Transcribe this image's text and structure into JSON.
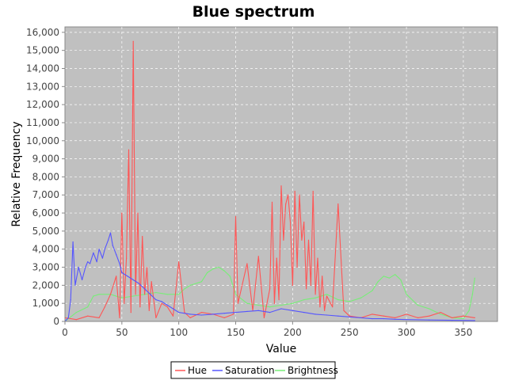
{
  "chart_data": {
    "type": "line",
    "title": "Blue spectrum",
    "xlabel": "Value",
    "ylabel": "Relative Frequency",
    "xlim": [
      0,
      380
    ],
    "ylim": [
      0,
      16300
    ],
    "x_ticks": [
      0,
      50,
      100,
      150,
      200,
      250,
      300,
      350
    ],
    "x_tick_labels": [
      "0",
      "50",
      "100",
      "150",
      "200",
      "250",
      "300",
      "350"
    ],
    "y_ticks": [
      0,
      1000,
      2000,
      3000,
      4000,
      5000,
      6000,
      7000,
      8000,
      9000,
      10000,
      11000,
      12000,
      13000,
      14000,
      15000,
      16000
    ],
    "y_tick_labels": [
      "0",
      "1,000",
      "2,000",
      "3,000",
      "4,000",
      "5,000",
      "6,000",
      "7,000",
      "8,000",
      "9,000",
      "10,000",
      "11,000",
      "12,000",
      "13,000",
      "14,000",
      "15,000",
      "16,000"
    ],
    "grid": true,
    "background": "#c0c0c0",
    "legend_position": "bottom",
    "series": [
      {
        "name": "Hue",
        "color": "#ff5555",
        "x": [
          0,
          10,
          20,
          30,
          35,
          40,
          45,
          48,
          50,
          52,
          54,
          56,
          58,
          60,
          62,
          64,
          66,
          68,
          70,
          72,
          74,
          76,
          80,
          85,
          90,
          95,
          100,
          105,
          110,
          120,
          130,
          140,
          148,
          150,
          152,
          160,
          165,
          170,
          175,
          180,
          182,
          184,
          186,
          188,
          190,
          192,
          194,
          196,
          198,
          200,
          202,
          204,
          206,
          208,
          210,
          212,
          214,
          216,
          218,
          220,
          222,
          224,
          226,
          228,
          230,
          235,
          240,
          245,
          250,
          260,
          270,
          280,
          290,
          300,
          310,
          320,
          330,
          340,
          350,
          360
        ],
        "y": [
          200,
          100,
          300,
          200,
          800,
          1500,
          2500,
          200,
          6000,
          1000,
          3500,
          9500,
          500,
          15500,
          1500,
          6000,
          800,
          4700,
          1500,
          3000,
          600,
          2200,
          200,
          1000,
          800,
          300,
          3300,
          500,
          200,
          500,
          400,
          200,
          400,
          5800,
          1000,
          3200,
          600,
          3600,
          200,
          1800,
          6600,
          1000,
          3500,
          1200,
          7500,
          4500,
          6500,
          7000,
          5500,
          2000,
          7200,
          3000,
          7000,
          4500,
          5500,
          1800,
          4500,
          2000,
          7200,
          1500,
          3500,
          800,
          2500,
          600,
          1400,
          800,
          6500,
          600,
          300,
          200,
          400,
          300,
          200,
          400,
          200,
          300,
          500,
          200,
          300,
          200
        ]
      },
      {
        "name": "Saturation",
        "color": "#5555ff",
        "x": [
          0,
          3,
          5,
          7,
          9,
          12,
          15,
          18,
          20,
          22,
          25,
          28,
          30,
          33,
          35,
          38,
          40,
          42,
          45,
          48,
          50,
          55,
          60,
          65,
          70,
          75,
          80,
          85,
          90,
          95,
          100,
          110,
          120,
          130,
          140,
          150,
          160,
          170,
          180,
          190,
          200,
          210,
          220,
          230,
          240,
          250,
          260,
          270,
          280,
          290,
          300,
          320,
          340,
          360
        ],
        "y": [
          0,
          200,
          1200,
          4400,
          2000,
          3000,
          2300,
          3000,
          3300,
          3200,
          3800,
          3300,
          4000,
          3500,
          4000,
          4500,
          4900,
          4200,
          3700,
          3200,
          2700,
          2500,
          2300,
          2100,
          1800,
          1500,
          1200,
          1100,
          900,
          700,
          500,
          400,
          350,
          400,
          450,
          500,
          550,
          600,
          500,
          700,
          600,
          500,
          400,
          350,
          300,
          250,
          200,
          150,
          150,
          120,
          100,
          80,
          60,
          50
        ]
      },
      {
        "name": "Brightness",
        "color": "#77ee77",
        "x": [
          0,
          10,
          20,
          25,
          30,
          40,
          50,
          60,
          70,
          80,
          90,
          100,
          105,
          110,
          120,
          125,
          130,
          135,
          140,
          145,
          150,
          160,
          170,
          180,
          190,
          200,
          210,
          220,
          230,
          240,
          250,
          260,
          270,
          275,
          280,
          285,
          290,
          295,
          300,
          310,
          320,
          330,
          340,
          350,
          355,
          358,
          360
        ],
        "y": [
          0,
          500,
          800,
          1400,
          1500,
          1500,
          1300,
          1400,
          1500,
          1600,
          1500,
          1500,
          1800,
          2000,
          2200,
          2700,
          2900,
          3000,
          2800,
          2500,
          1500,
          1000,
          900,
          800,
          900,
          1000,
          1200,
          1300,
          1500,
          1200,
          1100,
          1300,
          1700,
          2200,
          2500,
          2400,
          2600,
          2300,
          1500,
          900,
          700,
          400,
          200,
          150,
          600,
          1500,
          2400
        ]
      }
    ]
  }
}
